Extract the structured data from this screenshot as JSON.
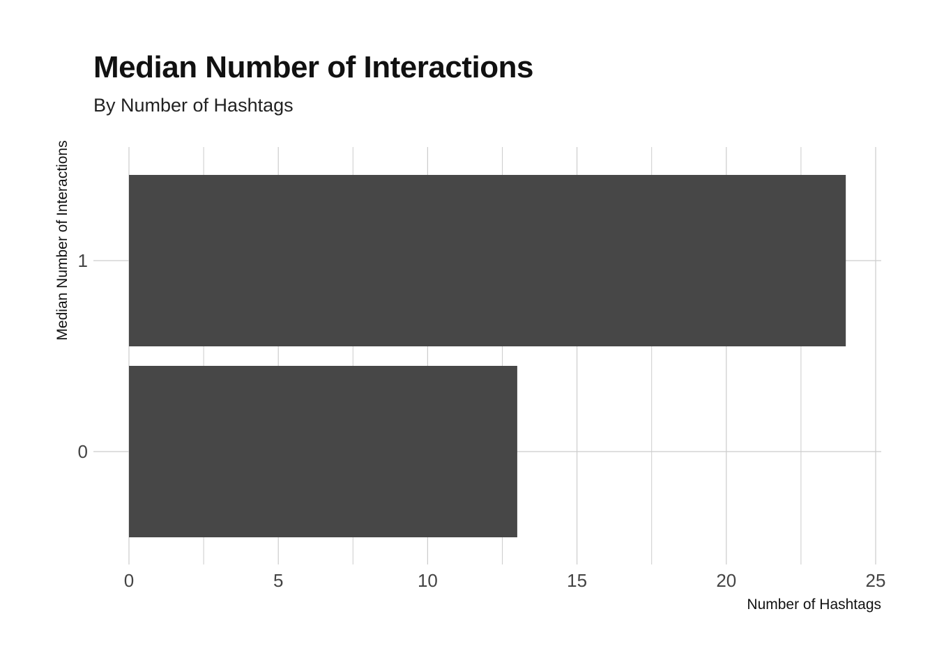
{
  "chart_data": {
    "type": "bar",
    "orientation": "horizontal",
    "title": "Median Number of Interactions",
    "subtitle": "By Number of Hashtags",
    "xlabel": "Number of Hashtags",
    "ylabel": "Median Number of Interactions",
    "categories": [
      "0",
      "1"
    ],
    "values": [
      13,
      24
    ],
    "xlim": [
      0,
      25
    ],
    "x_ticks": [
      0,
      5,
      10,
      15,
      20,
      25
    ],
    "grid": true,
    "legend": "none",
    "bar_color": "#474747",
    "grid_color": "#cccccc"
  }
}
